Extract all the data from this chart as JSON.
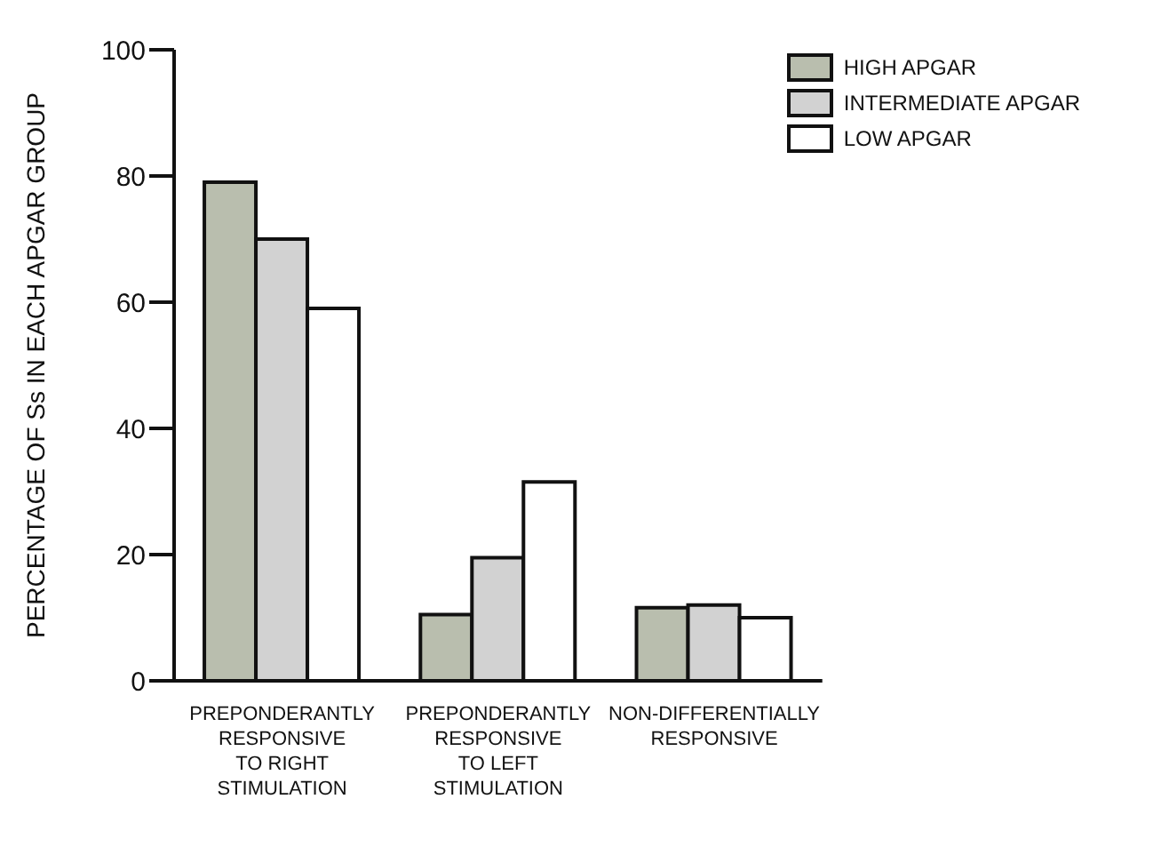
{
  "chart_data": {
    "type": "bar",
    "ylabel": "PERCENTAGE OF Ss IN EACH APGAR GROUP",
    "categories": [
      "PREPONDERANTLY RESPONSIVE TO RIGHT STIMULATION",
      "PREPONDERANTLY RESPONSIVE TO LEFT STIMULATION",
      "NON-DIFFERENTIALLY RESPONSIVE"
    ],
    "series": [
      {
        "name": "HIGH APGAR",
        "color": "#b9beae",
        "values": [
          79,
          10.5,
          11.6
        ]
      },
      {
        "name": "INTERMEDIATE APGAR",
        "color": "#d2d2d2",
        "values": [
          70,
          19.5,
          12
        ]
      },
      {
        "name": "LOW APGAR",
        "color": "#ffffff",
        "values": [
          59,
          31.5,
          10
        ]
      }
    ],
    "ylim": [
      0,
      100
    ],
    "yticks": [
      0,
      20,
      40,
      60,
      80,
      100
    ],
    "grid": false,
    "legend": "top right"
  }
}
